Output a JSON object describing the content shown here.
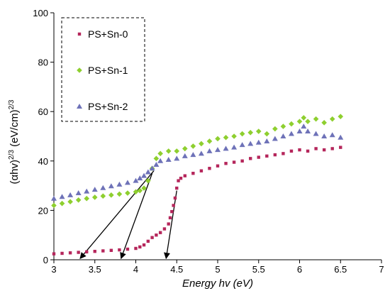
{
  "chart_data": {
    "type": "scatter",
    "title": "",
    "xlabel": "Energy hv (eV)",
    "ylabel_parts": [
      "(αhv)",
      "2/3",
      " (eV/cm)",
      "2/3"
    ],
    "xlim": [
      3,
      7
    ],
    "ylim": [
      0,
      100
    ],
    "x_ticks": [
      3,
      3.5,
      4,
      4.5,
      5,
      5.5,
      6,
      6.5,
      7
    ],
    "x_tick_labels": [
      "3",
      "3.5",
      "4",
      "4.5",
      "5",
      "5.5",
      "6",
      "6.5",
      "7"
    ],
    "y_ticks": [
      0,
      20,
      40,
      60,
      80,
      100
    ],
    "y_tick_labels": [
      "0",
      "20",
      "40",
      "60",
      "80",
      "100"
    ],
    "grid": false,
    "legend_position": "top-left",
    "series": [
      {
        "name": "PS+Sn-0",
        "color": "#b5265b",
        "marker": "square",
        "points": [
          [
            3.0,
            2.4
          ],
          [
            3.1,
            2.6
          ],
          [
            3.2,
            2.8
          ],
          [
            3.3,
            3.0
          ],
          [
            3.4,
            3.2
          ],
          [
            3.5,
            3.4
          ],
          [
            3.6,
            3.6
          ],
          [
            3.7,
            3.8
          ],
          [
            3.8,
            4.0
          ],
          [
            3.9,
            4.3
          ],
          [
            4.0,
            4.6
          ],
          [
            4.05,
            5.2
          ],
          [
            4.1,
            6.0
          ],
          [
            4.15,
            7.5
          ],
          [
            4.2,
            9.0
          ],
          [
            4.25,
            10.0
          ],
          [
            4.3,
            11.0
          ],
          [
            4.35,
            12.5
          ],
          [
            4.4,
            14.5
          ],
          [
            4.42,
            17.0
          ],
          [
            4.44,
            19.5
          ],
          [
            4.46,
            22.0
          ],
          [
            4.48,
            25.0
          ],
          [
            4.5,
            29.0
          ],
          [
            4.52,
            32.0
          ],
          [
            4.55,
            33.0
          ],
          [
            4.6,
            34.0
          ],
          [
            4.7,
            35.0
          ],
          [
            4.8,
            36.0
          ],
          [
            4.9,
            37.0
          ],
          [
            5.0,
            38.0
          ],
          [
            5.1,
            39.0
          ],
          [
            5.2,
            39.5
          ],
          [
            5.3,
            40.0
          ],
          [
            5.4,
            41.0
          ],
          [
            5.5,
            41.5
          ],
          [
            5.6,
            42.0
          ],
          [
            5.7,
            42.5
          ],
          [
            5.8,
            43.0
          ],
          [
            5.9,
            44.0
          ],
          [
            6.0,
            44.5
          ],
          [
            6.1,
            44.0
          ],
          [
            6.2,
            45.0
          ],
          [
            6.3,
            44.5
          ],
          [
            6.4,
            45.0
          ],
          [
            6.5,
            45.5
          ]
        ]
      },
      {
        "name": "PS+Sn-1",
        "color": "#8ecf2f",
        "marker": "diamond",
        "points": [
          [
            3.0,
            22.0
          ],
          [
            3.1,
            22.8
          ],
          [
            3.2,
            23.5
          ],
          [
            3.3,
            24.2
          ],
          [
            3.4,
            24.8
          ],
          [
            3.5,
            25.3
          ],
          [
            3.6,
            25.8
          ],
          [
            3.7,
            26.2
          ],
          [
            3.8,
            26.6
          ],
          [
            3.9,
            27.0
          ],
          [
            4.0,
            27.5
          ],
          [
            4.05,
            28.0
          ],
          [
            4.1,
            29.0
          ],
          [
            4.15,
            32.0
          ],
          [
            4.2,
            37.0
          ],
          [
            4.25,
            41.0
          ],
          [
            4.3,
            43.0
          ],
          [
            4.4,
            44.0
          ],
          [
            4.5,
            44.0
          ],
          [
            4.6,
            45.0
          ],
          [
            4.7,
            46.0
          ],
          [
            4.8,
            47.0
          ],
          [
            4.9,
            48.0
          ],
          [
            5.0,
            49.0
          ],
          [
            5.1,
            49.5
          ],
          [
            5.2,
            50.0
          ],
          [
            5.3,
            51.0
          ],
          [
            5.4,
            51.5
          ],
          [
            5.5,
            52.0
          ],
          [
            5.6,
            51.0
          ],
          [
            5.7,
            53.0
          ],
          [
            5.8,
            54.0
          ],
          [
            5.9,
            55.0
          ],
          [
            6.0,
            56.0
          ],
          [
            6.05,
            57.5
          ],
          [
            6.1,
            56.0
          ],
          [
            6.2,
            57.0
          ],
          [
            6.3,
            55.5
          ],
          [
            6.4,
            57.0
          ],
          [
            6.5,
            58.0
          ]
        ]
      },
      {
        "name": "PS+Sn-2",
        "color": "#6e72b8",
        "marker": "triangle",
        "points": [
          [
            3.0,
            24.8
          ],
          [
            3.1,
            25.5
          ],
          [
            3.2,
            26.2
          ],
          [
            3.3,
            27.0
          ],
          [
            3.4,
            27.7
          ],
          [
            3.5,
            28.4
          ],
          [
            3.6,
            29.1
          ],
          [
            3.7,
            29.8
          ],
          [
            3.8,
            30.5
          ],
          [
            3.9,
            31.2
          ],
          [
            4.0,
            32.0
          ],
          [
            4.05,
            33.0
          ],
          [
            4.1,
            34.0
          ],
          [
            4.15,
            35.5
          ],
          [
            4.2,
            37.0
          ],
          [
            4.25,
            38.5
          ],
          [
            4.3,
            40.0
          ],
          [
            4.4,
            40.5
          ],
          [
            4.5,
            41.0
          ],
          [
            4.6,
            42.0
          ],
          [
            4.7,
            42.5
          ],
          [
            4.8,
            43.0
          ],
          [
            4.9,
            44.0
          ],
          [
            5.0,
            44.5
          ],
          [
            5.1,
            45.0
          ],
          [
            5.2,
            45.5
          ],
          [
            5.3,
            46.5
          ],
          [
            5.4,
            47.0
          ],
          [
            5.5,
            47.5
          ],
          [
            5.6,
            48.0
          ],
          [
            5.7,
            49.0
          ],
          [
            5.8,
            50.0
          ],
          [
            5.9,
            51.0
          ],
          [
            6.0,
            52.0
          ],
          [
            6.05,
            54.0
          ],
          [
            6.1,
            52.0
          ],
          [
            6.2,
            51.0
          ],
          [
            6.3,
            50.0
          ],
          [
            6.4,
            50.5
          ],
          [
            6.5,
            49.5
          ]
        ]
      }
    ],
    "tangent_lines": [
      {
        "from": [
          4.5,
          28.0
        ],
        "to": [
          4.37,
          0.5
        ]
      },
      {
        "from": [
          4.2,
          35.0
        ],
        "to": [
          3.82,
          0.5
        ]
      },
      {
        "from": [
          4.22,
          36.0
        ],
        "to": [
          3.32,
          0.5
        ]
      }
    ]
  }
}
